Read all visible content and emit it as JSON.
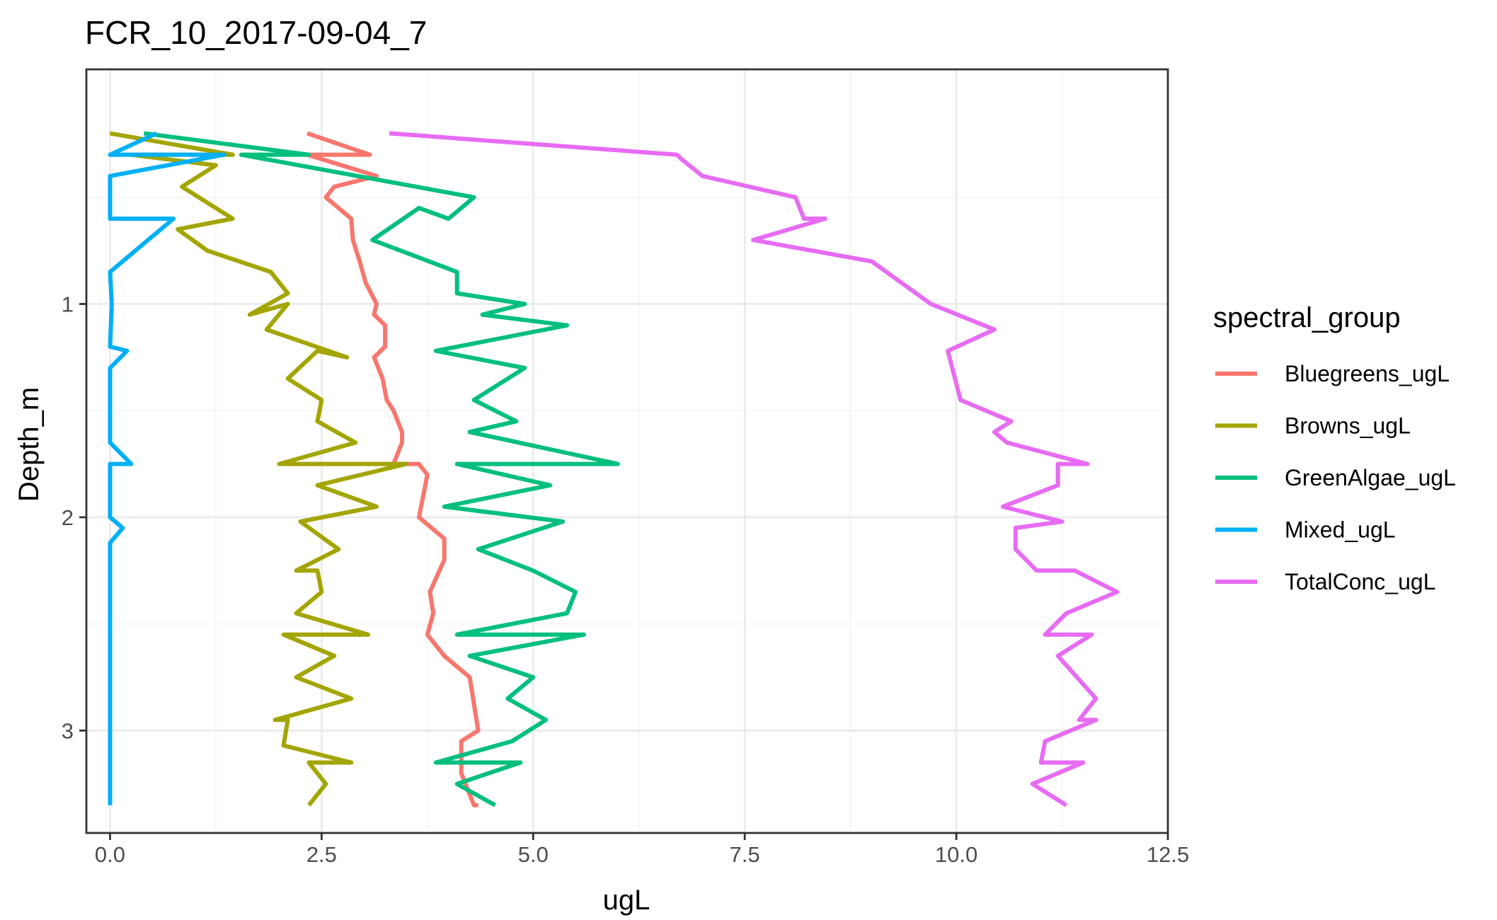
{
  "chart_data": {
    "type": "line",
    "title": "FCR_10_2017-09-04_7",
    "xlabel": "ugL",
    "ylabel": "Depth_m",
    "xlim": [
      -0.28,
      12.5
    ],
    "ylim": [
      3.48,
      -0.1
    ],
    "x_ticks": [
      0.0,
      2.5,
      5.0,
      7.5,
      10.0,
      12.5
    ],
    "x_tick_labels": [
      "0.0",
      "2.5",
      "5.0",
      "7.5",
      "10.0",
      "12.5"
    ],
    "y_ticks": [
      1,
      2,
      3
    ],
    "y_tick_labels": [
      "1",
      "2",
      "3"
    ],
    "grid": true,
    "legend": {
      "title": "spectral_group",
      "position": "right"
    },
    "series": [
      {
        "name": "Bluegreens_ugL",
        "color": "#F8766D",
        "points": [
          [
            2.33,
            0.2
          ],
          [
            3.07,
            0.3
          ],
          [
            2.33,
            0.3
          ],
          [
            3.15,
            0.4
          ],
          [
            2.65,
            0.45
          ],
          [
            2.55,
            0.5
          ],
          [
            2.85,
            0.6
          ],
          [
            2.87,
            0.7
          ],
          [
            2.95,
            0.8
          ],
          [
            3.02,
            0.9
          ],
          [
            3.15,
            1.0
          ],
          [
            3.12,
            1.05
          ],
          [
            3.25,
            1.1
          ],
          [
            3.25,
            1.2
          ],
          [
            3.12,
            1.25
          ],
          [
            3.22,
            1.35
          ],
          [
            3.27,
            1.45
          ],
          [
            3.35,
            1.5
          ],
          [
            3.45,
            1.6
          ],
          [
            3.45,
            1.65
          ],
          [
            3.35,
            1.75
          ],
          [
            3.65,
            1.75
          ],
          [
            3.75,
            1.8
          ],
          [
            3.7,
            1.9
          ],
          [
            3.65,
            2.0
          ],
          [
            3.95,
            2.1
          ],
          [
            3.95,
            2.2
          ],
          [
            3.78,
            2.35
          ],
          [
            3.82,
            2.45
          ],
          [
            3.75,
            2.55
          ],
          [
            3.95,
            2.65
          ],
          [
            4.25,
            2.75
          ],
          [
            4.35,
            3.0
          ],
          [
            4.15,
            3.05
          ],
          [
            4.15,
            3.2
          ],
          [
            4.3,
            3.35
          ],
          [
            4.35,
            3.35
          ]
        ]
      },
      {
        "name": "Browns_ugL",
        "color": "#A3A500",
        "points": [
          [
            0.0,
            0.2
          ],
          [
            1.45,
            0.3
          ],
          [
            0.25,
            0.3
          ],
          [
            1.25,
            0.35
          ],
          [
            0.85,
            0.45
          ],
          [
            1.45,
            0.6
          ],
          [
            0.8,
            0.65
          ],
          [
            1.15,
            0.75
          ],
          [
            1.9,
            0.85
          ],
          [
            2.1,
            0.95
          ],
          [
            1.65,
            1.05
          ],
          [
            2.1,
            1.0
          ],
          [
            1.85,
            1.12
          ],
          [
            2.8,
            1.25
          ],
          [
            2.45,
            1.22
          ],
          [
            2.1,
            1.35
          ],
          [
            2.5,
            1.45
          ],
          [
            2.45,
            1.55
          ],
          [
            2.9,
            1.65
          ],
          [
            2.0,
            1.75
          ],
          [
            3.5,
            1.75
          ],
          [
            2.45,
            1.85
          ],
          [
            3.15,
            1.95
          ],
          [
            2.25,
            2.02
          ],
          [
            2.7,
            2.15
          ],
          [
            2.2,
            2.25
          ],
          [
            2.45,
            2.25
          ],
          [
            2.5,
            2.35
          ],
          [
            2.2,
            2.45
          ],
          [
            3.05,
            2.55
          ],
          [
            2.05,
            2.55
          ],
          [
            2.65,
            2.65
          ],
          [
            2.2,
            2.75
          ],
          [
            2.85,
            2.85
          ],
          [
            1.95,
            2.95
          ],
          [
            2.1,
            2.95
          ],
          [
            2.05,
            3.07
          ],
          [
            2.85,
            3.15
          ],
          [
            2.35,
            3.15
          ],
          [
            2.55,
            3.25
          ],
          [
            2.35,
            3.35
          ]
        ]
      },
      {
        "name": "GreenAlgae_ugL",
        "color": "#00BF7D",
        "points": [
          [
            0.4,
            0.2
          ],
          [
            2.35,
            0.3
          ],
          [
            1.55,
            0.3
          ],
          [
            4.3,
            0.5
          ],
          [
            4.0,
            0.6
          ],
          [
            3.65,
            0.55
          ],
          [
            3.1,
            0.7
          ],
          [
            4.1,
            0.85
          ],
          [
            4.1,
            0.95
          ],
          [
            4.9,
            1.0
          ],
          [
            4.4,
            1.05
          ],
          [
            5.4,
            1.1
          ],
          [
            3.85,
            1.22
          ],
          [
            4.9,
            1.3
          ],
          [
            4.3,
            1.45
          ],
          [
            4.8,
            1.55
          ],
          [
            4.25,
            1.6
          ],
          [
            6.0,
            1.75
          ],
          [
            4.1,
            1.75
          ],
          [
            5.2,
            1.85
          ],
          [
            3.95,
            1.95
          ],
          [
            5.35,
            2.02
          ],
          [
            4.35,
            2.15
          ],
          [
            5.0,
            2.25
          ],
          [
            5.5,
            2.35
          ],
          [
            5.4,
            2.45
          ],
          [
            4.1,
            2.55
          ],
          [
            5.6,
            2.55
          ],
          [
            4.25,
            2.65
          ],
          [
            5.0,
            2.75
          ],
          [
            4.7,
            2.85
          ],
          [
            5.15,
            2.95
          ],
          [
            4.75,
            3.05
          ],
          [
            3.85,
            3.15
          ],
          [
            4.85,
            3.15
          ],
          [
            4.1,
            3.25
          ],
          [
            4.55,
            3.35
          ]
        ]
      },
      {
        "name": "Mixed_ugL",
        "color": "#00B0F6",
        "points": [
          [
            0.55,
            0.2
          ],
          [
            0.0,
            0.3
          ],
          [
            1.35,
            0.3
          ],
          [
            0.0,
            0.4
          ],
          [
            0.0,
            0.6
          ],
          [
            0.75,
            0.6
          ],
          [
            0.45,
            0.7
          ],
          [
            0.0,
            0.85
          ],
          [
            0.02,
            1.0
          ],
          [
            0.0,
            1.2
          ],
          [
            0.2,
            1.22
          ],
          [
            0.0,
            1.3
          ],
          [
            0.0,
            1.65
          ],
          [
            0.25,
            1.75
          ],
          [
            0.0,
            1.75
          ],
          [
            0.0,
            2.0
          ],
          [
            0.15,
            2.05
          ],
          [
            0.0,
            2.12
          ],
          [
            0.0,
            3.35
          ]
        ]
      },
      {
        "name": "TotalConc_ugL",
        "color": "#E76BF3",
        "points": [
          [
            3.3,
            0.2
          ],
          [
            6.7,
            0.3
          ],
          [
            6.75,
            0.32
          ],
          [
            7.0,
            0.4
          ],
          [
            8.1,
            0.5
          ],
          [
            8.2,
            0.6
          ],
          [
            8.45,
            0.6
          ],
          [
            7.6,
            0.7
          ],
          [
            9.0,
            0.8
          ],
          [
            9.7,
            1.0
          ],
          [
            10.45,
            1.12
          ],
          [
            9.9,
            1.22
          ],
          [
            10.05,
            1.45
          ],
          [
            10.65,
            1.55
          ],
          [
            10.45,
            1.6
          ],
          [
            10.6,
            1.65
          ],
          [
            11.55,
            1.75
          ],
          [
            11.2,
            1.75
          ],
          [
            11.2,
            1.85
          ],
          [
            10.55,
            1.95
          ],
          [
            11.25,
            2.02
          ],
          [
            10.7,
            2.05
          ],
          [
            10.7,
            2.15
          ],
          [
            10.95,
            2.25
          ],
          [
            11.4,
            2.25
          ],
          [
            11.9,
            2.35
          ],
          [
            11.3,
            2.45
          ],
          [
            11.05,
            2.55
          ],
          [
            11.6,
            2.55
          ],
          [
            11.2,
            2.65
          ],
          [
            11.65,
            2.85
          ],
          [
            11.45,
            2.95
          ],
          [
            11.65,
            2.95
          ],
          [
            11.05,
            3.05
          ],
          [
            11.0,
            3.15
          ],
          [
            11.5,
            3.15
          ],
          [
            10.9,
            3.25
          ],
          [
            11.3,
            3.35
          ]
        ]
      }
    ]
  }
}
